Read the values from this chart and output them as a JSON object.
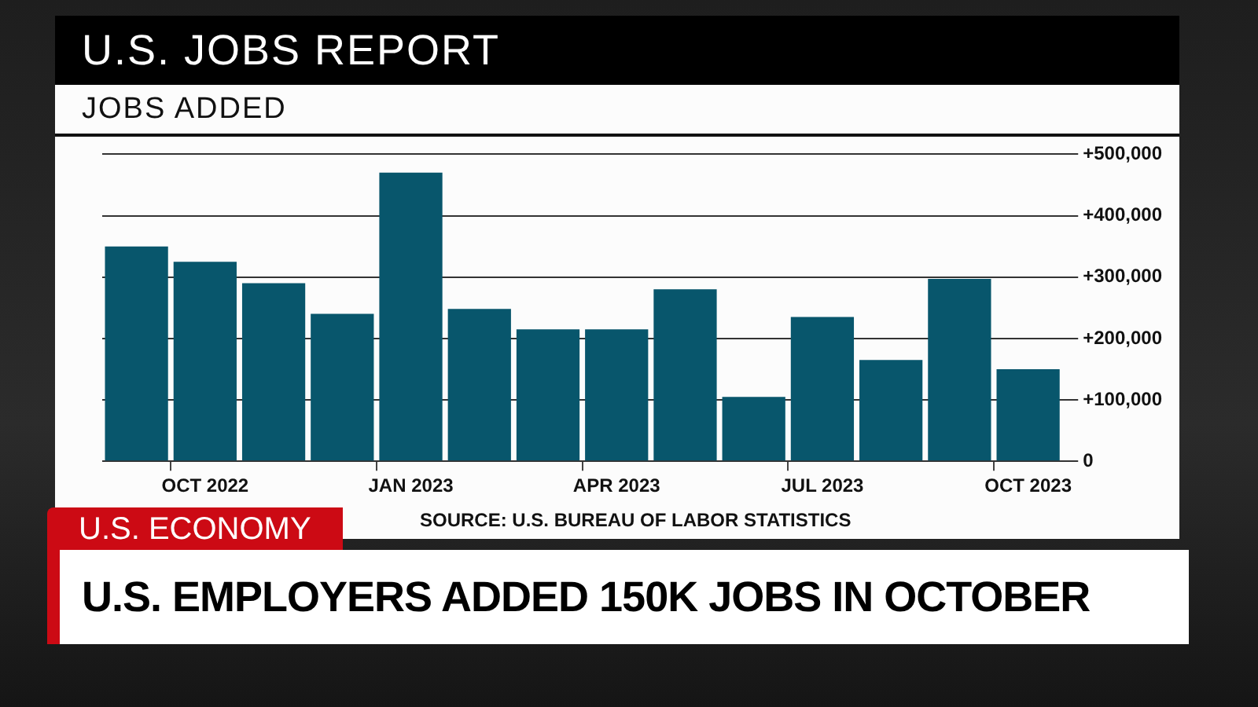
{
  "chart_data": {
    "type": "bar",
    "title": "U.S. JOBS REPORT",
    "subtitle": "JOBS ADDED",
    "categories": [
      null,
      "OCT 2022",
      null,
      null,
      "JAN 2023",
      null,
      null,
      "APR 2023",
      null,
      null,
      "JUL 2023",
      null,
      null,
      "OCT 2023"
    ],
    "values": [
      350000,
      325000,
      290000,
      240000,
      470000,
      248000,
      215000,
      215000,
      280000,
      105000,
      235000,
      165000,
      297000,
      150000
    ],
    "color": "#08566c",
    "ylim": [
      0,
      500000
    ],
    "yticks": [
      0,
      {
        "value": 100000,
        "label": "+100,000"
      },
      {
        "value": 200000,
        "label": "+200,000"
      },
      {
        "value": 300000,
        "label": "+300,000"
      },
      {
        "value": 400000,
        "label": "+400,000"
      },
      {
        "value": 500000,
        "label": "+500,000"
      }
    ],
    "grid": "y",
    "legend": false,
    "annotations": [
      "SOURCE: U.S. BUREAU OF LABOR STATISTICS",
      "U.S. ECONOMY",
      "U.S. EMPLOYERS ADDED 150K JOBS IN OCTOBER"
    ]
  }
}
